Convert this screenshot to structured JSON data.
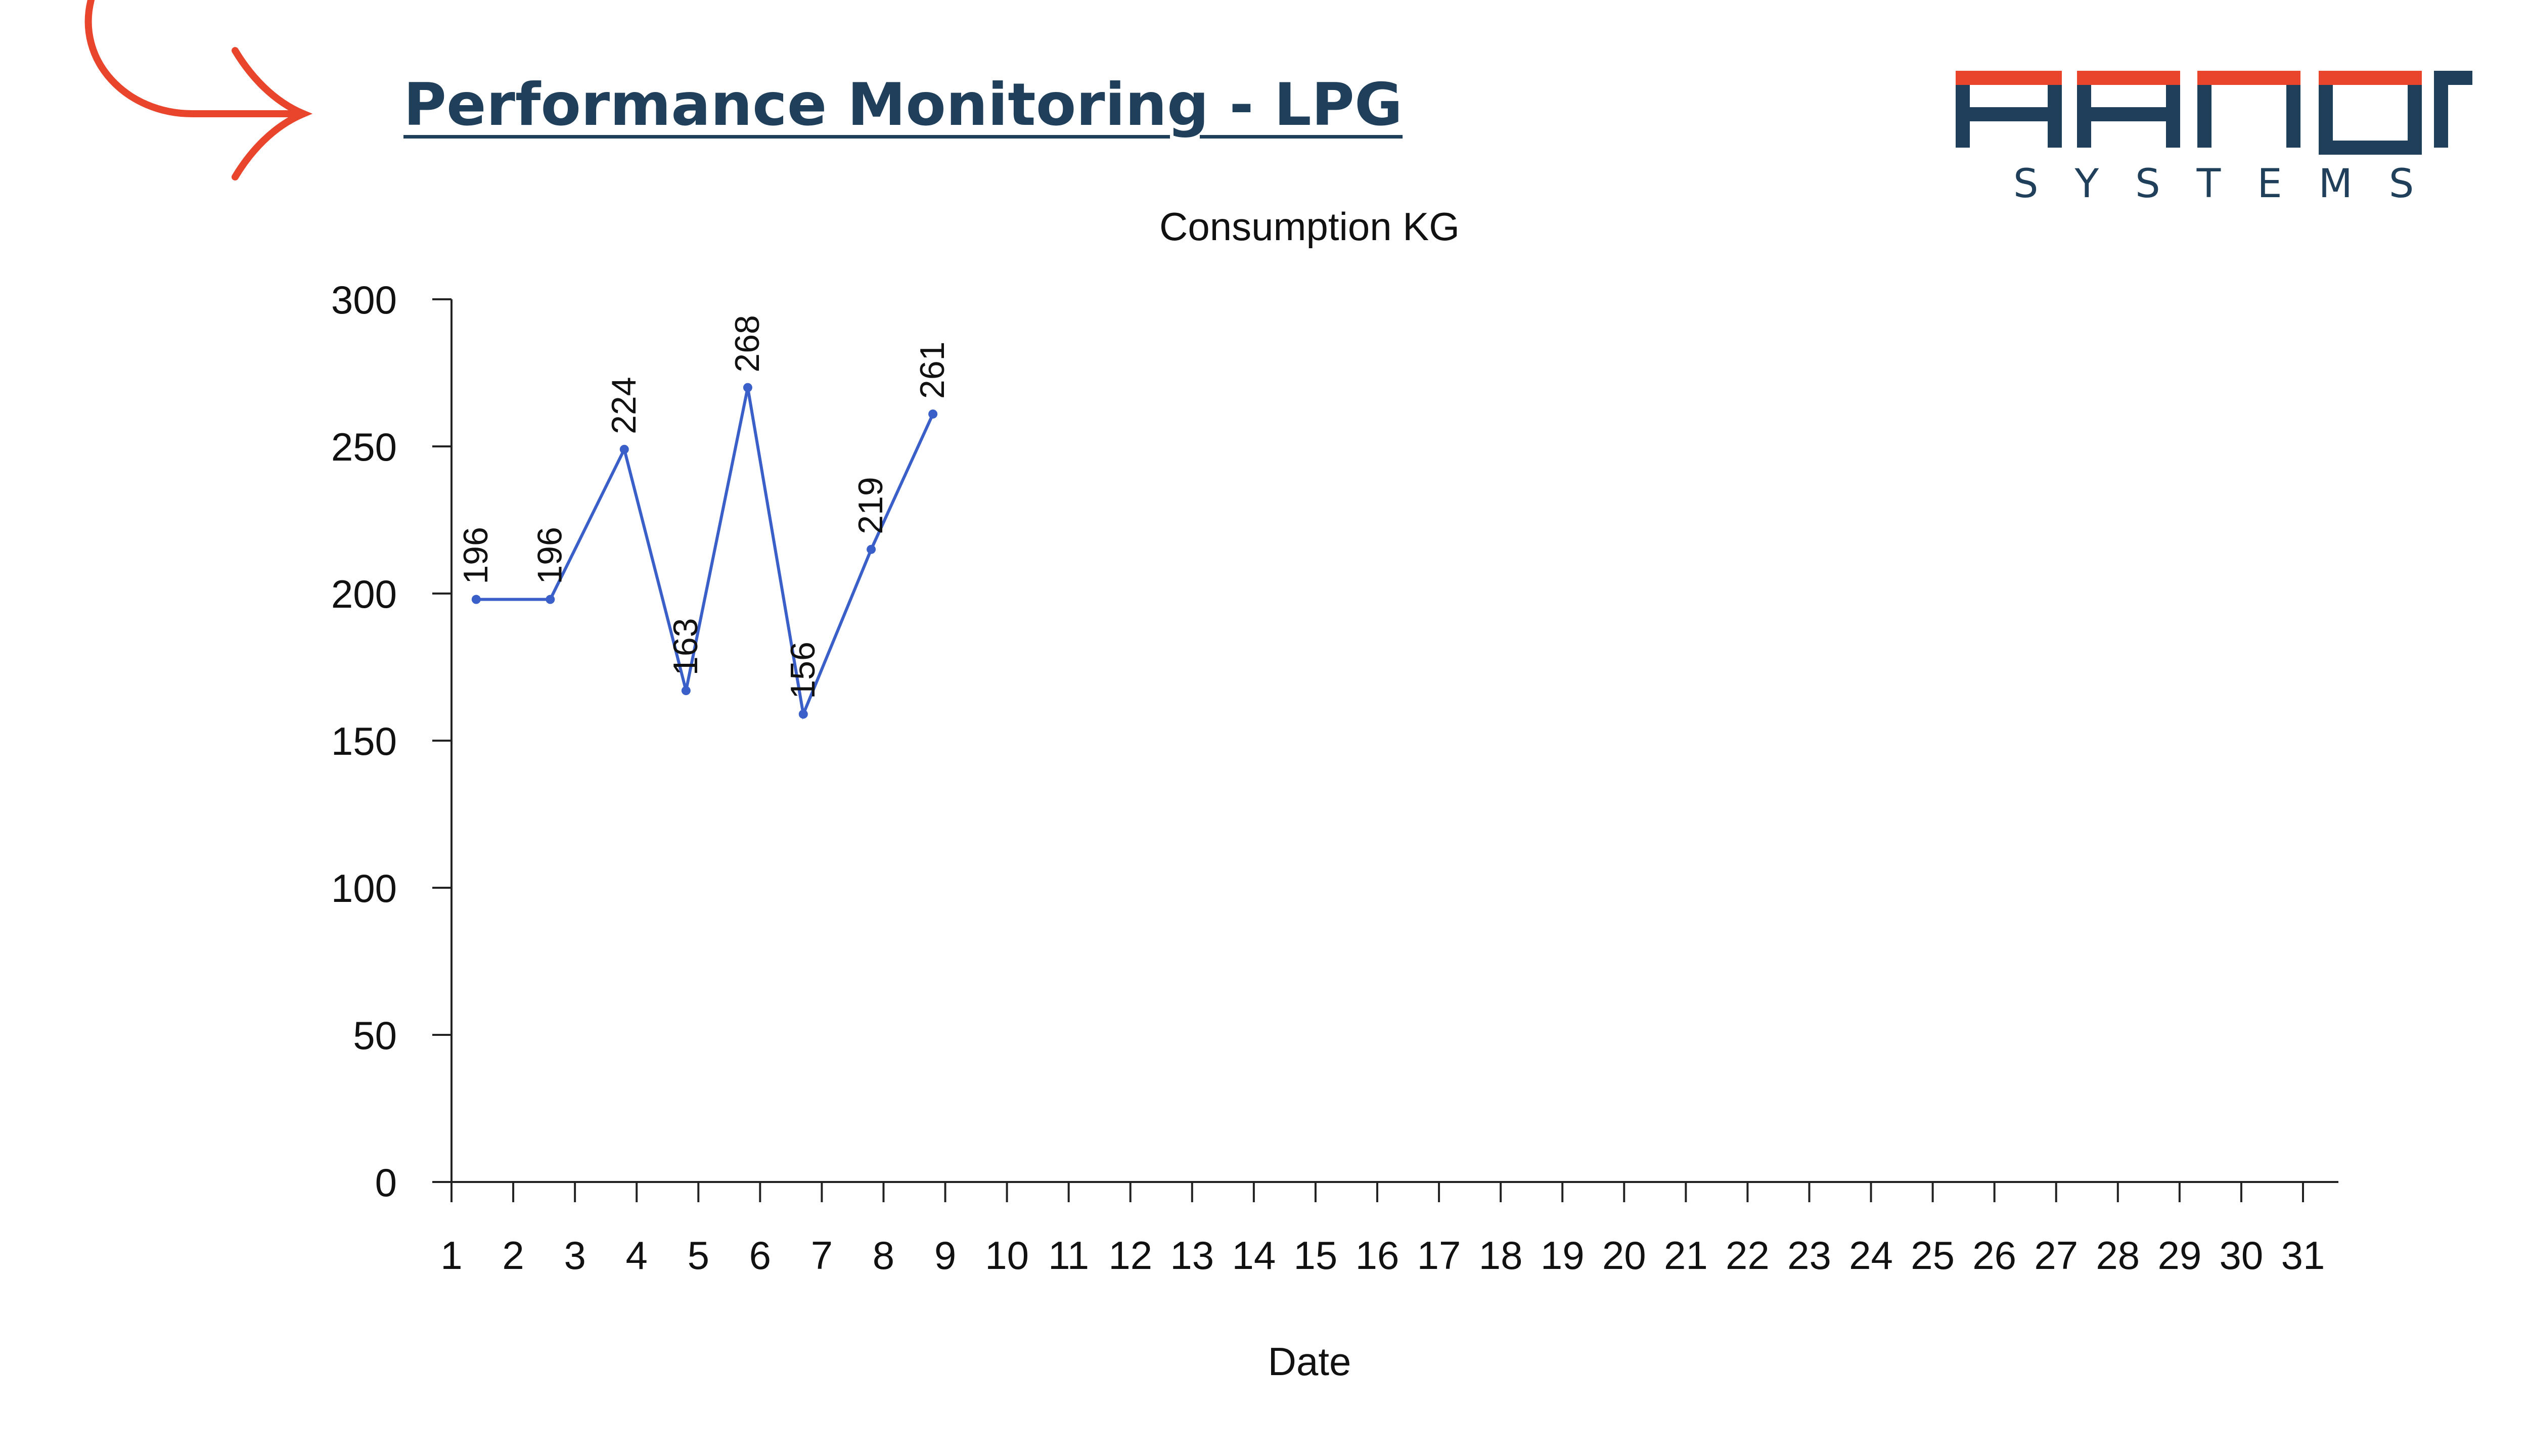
{
  "header": {
    "title": "Performance Monitoring - LPG"
  },
  "logo": {
    "name": "Hanon",
    "tagline": "SYSTEMS",
    "colors": {
      "red": "#e8452c",
      "navy": "#1f3f5a"
    }
  },
  "decoration": {
    "icon": "curved-arrow-icon",
    "color": "#e8452c"
  },
  "chart_data": {
    "type": "line",
    "title": "Consumption KG",
    "xlabel": "Date",
    "ylabel": "",
    "categories": [
      "1",
      "2",
      "3",
      "4",
      "5",
      "6",
      "7",
      "8",
      "9",
      "10",
      "11",
      "12",
      "13",
      "14",
      "15",
      "16",
      "17",
      "18",
      "19",
      "20",
      "21",
      "22",
      "23",
      "24",
      "25",
      "26",
      "27",
      "28",
      "29",
      "30",
      "31"
    ],
    "x": [
      1.4,
      2.6,
      3.8,
      4.8,
      5.8,
      6.7,
      7.8,
      8.8
    ],
    "series": [
      {
        "values": [
          196,
          196,
          224,
          163,
          268,
          156,
          219,
          261
        ],
        "points_y": [
          198,
          198,
          249,
          167,
          270,
          159,
          215,
          261
        ],
        "color": "#3a5fc8"
      }
    ],
    "ylim": [
      0,
      300
    ],
    "yticks": [
      0,
      50,
      100,
      150,
      200,
      250,
      300
    ],
    "xlim": [
      1,
      31
    ],
    "grid": false,
    "legend": "none"
  }
}
